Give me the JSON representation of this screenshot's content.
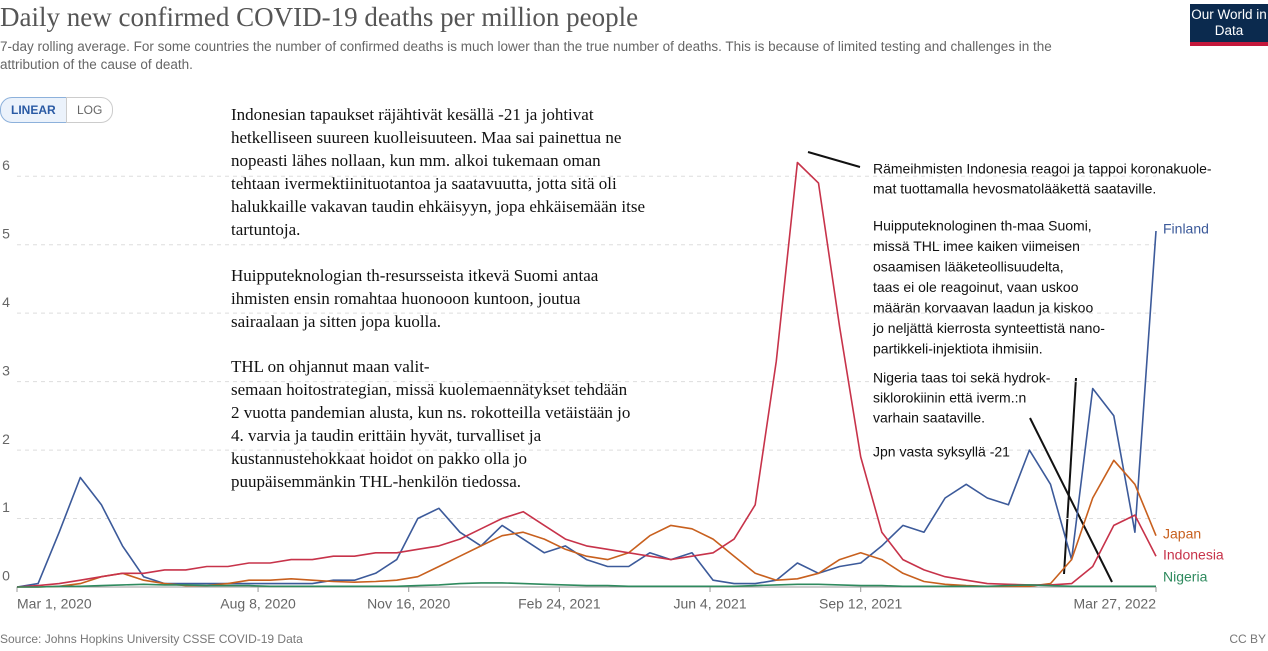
{
  "chart_data": {
    "type": "line",
    "title": "Daily new confirmed COVID-19 deaths per million people",
    "subtitle": "7-day rolling average. For some countries the number of confirmed deaths is much lower than the true number of deaths. This is because of limited testing and challenges in the attribution of the cause of death.",
    "logo": "Our World in Data",
    "scale_buttons": [
      "LINEAR",
      "LOG"
    ],
    "source": "Source: Johns Hopkins University CSSE COVID-19 Data",
    "license": "CC BY",
    "grid": true,
    "xlim": [
      "2020-03-01",
      "2022-03-27"
    ],
    "xticks": [
      {
        "value": "2020-03-01",
        "label": "Mar 1, 2020"
      },
      {
        "value": "2020-08-08",
        "label": "Aug 8, 2020"
      },
      {
        "value": "2020-11-16",
        "label": "Nov 16, 2020"
      },
      {
        "value": "2021-02-24",
        "label": "Feb 24, 2021"
      },
      {
        "value": "2021-06-04",
        "label": "Jun 4, 2021"
      },
      {
        "value": "2021-09-12",
        "label": "Sep 12, 2021"
      },
      {
        "value": "2022-03-27",
        "label": "Mar 27, 2022"
      }
    ],
    "ylim": [
      0,
      6.5
    ],
    "yticks": [
      0,
      1,
      2,
      3,
      4,
      5,
      6
    ],
    "x": [
      "2020-03-01",
      "2020-03-15",
      "2020-03-29",
      "2020-04-12",
      "2020-04-26",
      "2020-05-10",
      "2020-05-24",
      "2020-06-07",
      "2020-06-21",
      "2020-07-05",
      "2020-07-19",
      "2020-08-02",
      "2020-08-16",
      "2020-08-30",
      "2020-09-13",
      "2020-09-27",
      "2020-10-11",
      "2020-10-25",
      "2020-11-08",
      "2020-11-22",
      "2020-12-06",
      "2020-12-20",
      "2021-01-03",
      "2021-01-17",
      "2021-01-31",
      "2021-02-14",
      "2021-02-28",
      "2021-03-14",
      "2021-03-28",
      "2021-04-11",
      "2021-04-25",
      "2021-05-09",
      "2021-05-23",
      "2021-06-06",
      "2021-06-20",
      "2021-07-04",
      "2021-07-18",
      "2021-08-01",
      "2021-08-15",
      "2021-08-29",
      "2021-09-12",
      "2021-09-26",
      "2021-10-10",
      "2021-10-24",
      "2021-11-07",
      "2021-11-21",
      "2021-12-05",
      "2021-12-19",
      "2022-01-02",
      "2022-01-16",
      "2022-01-30",
      "2022-02-13",
      "2022-02-27",
      "2022-03-13",
      "2022-03-27"
    ],
    "series": [
      {
        "name": "Finland",
        "color": "#3c5a9a",
        "values": [
          0,
          0.05,
          0.8,
          1.6,
          1.2,
          0.6,
          0.15,
          0.05,
          0.05,
          0.05,
          0.05,
          0.05,
          0.05,
          0.05,
          0.05,
          0.1,
          0.1,
          0.2,
          0.4,
          1.0,
          1.15,
          0.8,
          0.6,
          0.9,
          0.7,
          0.5,
          0.6,
          0.4,
          0.3,
          0.3,
          0.5,
          0.4,
          0.5,
          0.1,
          0.05,
          0.05,
          0.1,
          0.35,
          0.2,
          0.3,
          0.35,
          0.6,
          0.9,
          0.8,
          1.3,
          1.5,
          1.3,
          1.2,
          2.0,
          1.5,
          0.4,
          2.9,
          2.5,
          0.8,
          5.2
        ]
      },
      {
        "name": "Japan",
        "color": "#c8601e",
        "values": [
          0,
          0,
          0.01,
          0.05,
          0.15,
          0.2,
          0.1,
          0.05,
          0.02,
          0.02,
          0.05,
          0.1,
          0.1,
          0.12,
          0.1,
          0.08,
          0.07,
          0.08,
          0.1,
          0.15,
          0.3,
          0.45,
          0.6,
          0.75,
          0.8,
          0.7,
          0.55,
          0.45,
          0.4,
          0.5,
          0.75,
          0.9,
          0.85,
          0.7,
          0.45,
          0.2,
          0.1,
          0.12,
          0.2,
          0.4,
          0.5,
          0.4,
          0.2,
          0.08,
          0.04,
          0.02,
          0.01,
          0.01,
          0.01,
          0.05,
          0.4,
          1.3,
          1.85,
          1.5,
          0.75
        ]
      },
      {
        "name": "Indonesia",
        "color": "#c7334a",
        "values": [
          0,
          0.02,
          0.05,
          0.1,
          0.15,
          0.2,
          0.2,
          0.25,
          0.25,
          0.3,
          0.3,
          0.35,
          0.35,
          0.4,
          0.4,
          0.45,
          0.45,
          0.5,
          0.5,
          0.55,
          0.6,
          0.7,
          0.85,
          1.0,
          1.1,
          0.9,
          0.7,
          0.6,
          0.55,
          0.5,
          0.45,
          0.4,
          0.45,
          0.5,
          0.7,
          1.2,
          3.3,
          6.2,
          5.9,
          3.8,
          1.9,
          0.8,
          0.4,
          0.25,
          0.15,
          0.1,
          0.05,
          0.04,
          0.03,
          0.03,
          0.05,
          0.3,
          0.9,
          1.05,
          0.45
        ]
      },
      {
        "name": "Nigeria",
        "color": "#2e8a5e",
        "values": [
          0,
          0,
          0.01,
          0.01,
          0.02,
          0.03,
          0.04,
          0.03,
          0.03,
          0.02,
          0.02,
          0.02,
          0.01,
          0.01,
          0.01,
          0.01,
          0.01,
          0.01,
          0.01,
          0.02,
          0.03,
          0.05,
          0.06,
          0.06,
          0.05,
          0.04,
          0.03,
          0.02,
          0.02,
          0.01,
          0.01,
          0.01,
          0.01,
          0.01,
          0.01,
          0.02,
          0.03,
          0.04,
          0.04,
          0.03,
          0.02,
          0.02,
          0.01,
          0.01,
          0.01,
          0.01,
          0.01,
          0.02,
          0.03,
          0.02,
          0.01,
          0.01,
          0.01,
          0.01,
          0.01
        ]
      }
    ],
    "annotations": [
      {
        "lines": [
          "Indonesian tapaukset räjähtivät kesällä -21 ja johtivat",
          "hetkelliseen suureen kuolleisuuteen. Maa sai painettua ne",
          "nopeasti lähes nollaan, kun mm. alkoi tukemaan oman",
          "tehtaan ivermektiinituotantoa ja saatavuutta, jotta sitä oli",
          "halukkaille vakavan taudin ehkäisyyn, jopa ehkäisemään itse",
          "tartuntoja."
        ]
      },
      {
        "lines": [
          "Huipputeknologian th-resursseista itkevä Suomi antaa",
          "ihmisten ensin romahtaa huonooon kuntoon, joutua",
          "sairaalaan ja sitten jopa kuolla."
        ]
      },
      {
        "lines": [
          "THL on ohjannut maan valit-",
          "semaan hoitostrategian, missä kuolemaennätykset tehdään",
          "2 vuotta pandemian alusta, kun ns. rokotteilla vetäistään jo",
          "4. varvia ja taudin erittäin hyvät, turvalliset ja",
          "kustannustehokkaat hoidot on pakko olla jo",
          "puupäisemmänkin THL-henkilön tiedossa."
        ]
      },
      {
        "lines": [
          "Rämeihmisten Indonesia reagoi ja tappoi koronakuole-",
          "mat tuottamalla hevosmatolääkettä saataville."
        ]
      },
      {
        "lines": [
          "Huipputeknologinen th-maa Suomi,",
          "missä THL imee kaiken viimeisen",
          "osaamisen lääketeollisuudelta,",
          "taas ei ole reagoinut, vaan uskoo",
          "määrän korvaavan laadun ja kiskoo",
          "jo neljättä kierrosta synteettistä nano-",
          "partikkeli-injektiota ihmisiin."
        ]
      },
      {
        "lines": [
          "Nigeria taas toi sekä hydrok-",
          "siklorokiinin että iverm.:n",
          "varhain saataville."
        ]
      },
      {
        "lines": [
          "Jpn vasta syksyllä -21"
        ]
      }
    ]
  }
}
